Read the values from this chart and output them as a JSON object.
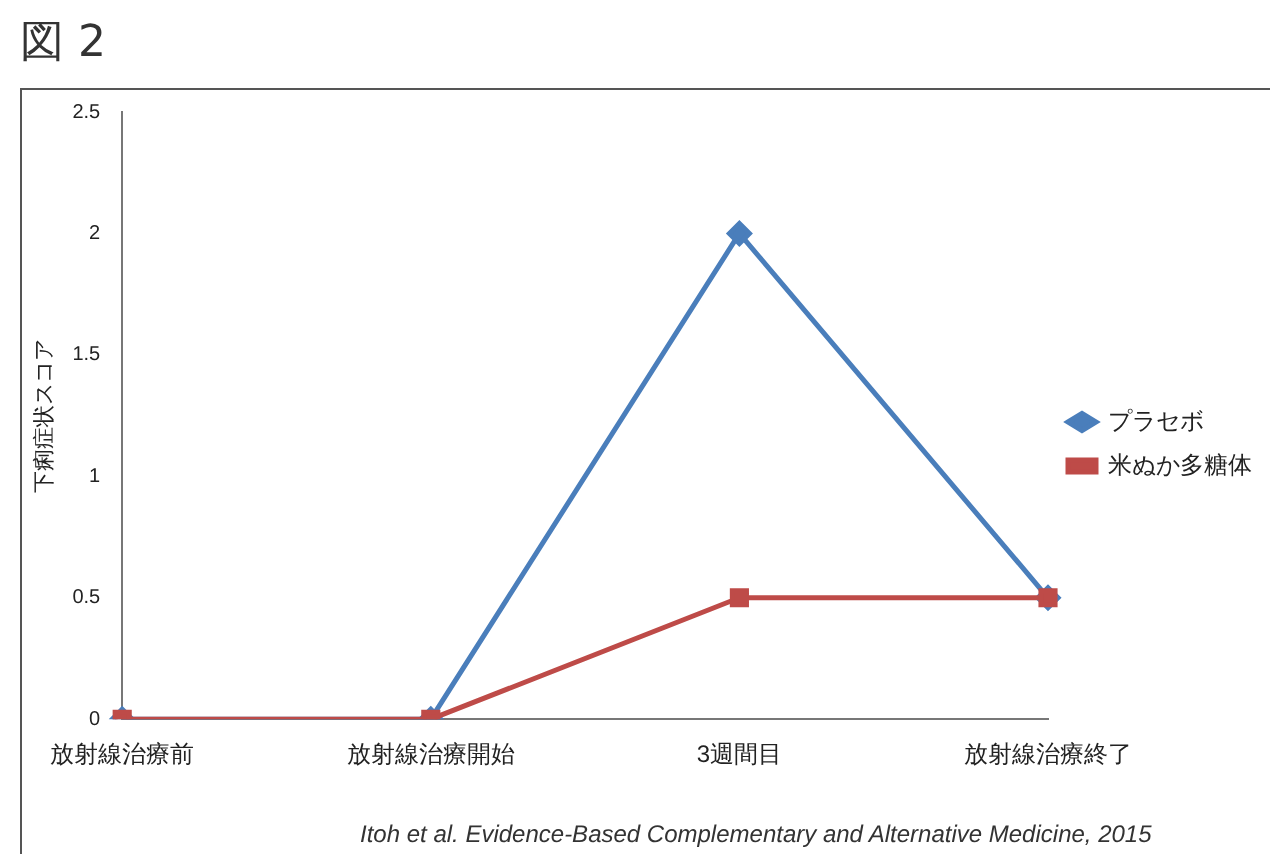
{
  "chart_data": {
    "type": "line",
    "title": "図 2",
    "ylabel": "下痢症状スコア",
    "categories": [
      "放射線治療前",
      "放射線治療開始",
      "3週間目",
      "放射線治療終了"
    ],
    "series": [
      {
        "name": "プラセボ",
        "color": "#4a7ebb",
        "marker": "diamond",
        "values": [
          0,
          0,
          2,
          0.5
        ]
      },
      {
        "name": "米ぬか多糖体",
        "color": "#be4b48",
        "marker": "square",
        "values": [
          0,
          0,
          0.5,
          0.5
        ]
      }
    ],
    "ylim": [
      0,
      2.5
    ],
    "yticks": [
      0,
      0.5,
      1,
      1.5,
      2,
      2.5
    ],
    "grid": false,
    "legend": "right",
    "annotations": [
      "Itoh et al. Evidence-Based Complementary and Alternative Medicine, 2015"
    ]
  }
}
